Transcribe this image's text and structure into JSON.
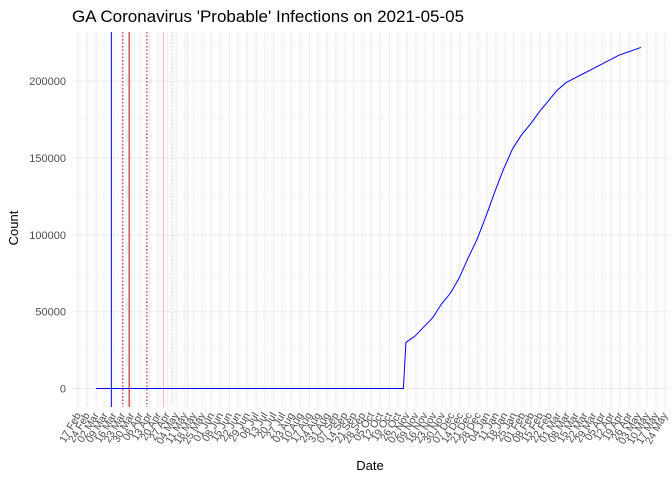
{
  "chart_data": {
    "type": "line",
    "title": "GA Coronavirus 'Probable' Infections on 2021-05-05",
    "xlabel": "Date",
    "ylabel": "Count",
    "ylim": [
      -12000,
      232000
    ],
    "xlim": [
      "2020-02-12",
      "2021-05-28"
    ],
    "grid": true,
    "legend": "none",
    "y_ticks": [
      0,
      50000,
      100000,
      150000,
      200000
    ],
    "x_tick_labels": [
      "17 Feb",
      "24 Feb",
      "02 Mar",
      "09 Mar",
      "16 Mar",
      "23 Mar",
      "30 Mar",
      "06 Apr",
      "13 Apr",
      "20 Apr",
      "27 Apr",
      "04 May",
      "11 May",
      "18 May",
      "25 May",
      "01 Jun",
      "08 Jun",
      "15 Jun",
      "22 Jun",
      "29 Jun",
      "06 Jul",
      "13 Jul",
      "20 Jul",
      "27 Jul",
      "03 Aug",
      "10 Aug",
      "17 Aug",
      "24 Aug",
      "31 Aug",
      "07 Sep",
      "14 Sep",
      "21 Sep",
      "28 Sep",
      "05 Oct",
      "12 Oct",
      "19 Oct",
      "26 Oct",
      "02 Nov",
      "09 Nov",
      "16 Nov",
      "23 Nov",
      "30 Nov",
      "07 Dec",
      "14 Dec",
      "21 Dec",
      "28 Dec",
      "04 Jan",
      "11 Jan",
      "18 Jan",
      "25 Jan",
      "01 Feb",
      "08 Feb",
      "15 Feb",
      "22 Feb",
      "01 Mar",
      "08 Mar",
      "15 Mar",
      "22 Mar",
      "29 Mar",
      "05 Apr",
      "12 Apr",
      "19 Apr",
      "26 Apr",
      "03 May",
      "10 May",
      "17 May",
      "24 May"
    ],
    "x_tick_dates": [
      "2020-02-17",
      "2020-02-24",
      "2020-03-02",
      "2020-03-09",
      "2020-03-16",
      "2020-03-23",
      "2020-03-30",
      "2020-04-06",
      "2020-04-13",
      "2020-04-20",
      "2020-04-27",
      "2020-05-04",
      "2020-05-11",
      "2020-05-18",
      "2020-05-25",
      "2020-06-01",
      "2020-06-08",
      "2020-06-15",
      "2020-06-22",
      "2020-06-29",
      "2020-07-06",
      "2020-07-13",
      "2020-07-20",
      "2020-07-27",
      "2020-08-03",
      "2020-08-10",
      "2020-08-17",
      "2020-08-24",
      "2020-08-31",
      "2020-09-07",
      "2020-09-14",
      "2020-09-21",
      "2020-09-28",
      "2020-10-05",
      "2020-10-12",
      "2020-10-19",
      "2020-10-26",
      "2020-11-02",
      "2020-11-09",
      "2020-11-16",
      "2020-11-23",
      "2020-11-30",
      "2020-12-07",
      "2020-12-14",
      "2020-12-21",
      "2020-12-28",
      "2021-01-04",
      "2021-01-11",
      "2021-01-18",
      "2021-01-25",
      "2021-02-01",
      "2021-02-08",
      "2021-02-15",
      "2021-02-22",
      "2021-03-01",
      "2021-03-08",
      "2021-03-15",
      "2021-03-22",
      "2021-03-29",
      "2021-04-05",
      "2021-04-12",
      "2021-04-19",
      "2021-04-26",
      "2021-05-03",
      "2021-05-10",
      "2021-05-17",
      "2021-05-24"
    ],
    "series": [
      {
        "color": "#0000ff",
        "x": [
          "2020-03-02",
          "2020-10-30",
          "2020-11-01",
          "2020-11-08",
          "2020-11-15",
          "2020-11-22",
          "2020-11-29",
          "2020-12-06",
          "2020-12-13",
          "2020-12-20",
          "2020-12-27",
          "2021-01-03",
          "2021-01-10",
          "2021-01-17",
          "2021-01-24",
          "2021-01-31",
          "2021-02-07",
          "2021-02-14",
          "2021-02-21",
          "2021-02-28",
          "2021-03-07",
          "2021-03-14",
          "2021-03-21",
          "2021-03-28",
          "2021-04-04",
          "2021-04-11",
          "2021-04-18",
          "2021-04-25",
          "2021-05-02",
          "2021-05-05"
        ],
        "y": [
          0,
          0,
          30000,
          34000,
          40000,
          46000,
          55000,
          62000,
          72000,
          85000,
          97000,
          112000,
          128000,
          143000,
          156000,
          165000,
          172000,
          180000,
          187000,
          194000,
          199000,
          202000,
          205000,
          208000,
          211000,
          214000,
          217000,
          219000,
          221000,
          222000
        ]
      }
    ],
    "vlines": [
      {
        "date": "2020-03-14",
        "color": "#0000ff",
        "style": "solid"
      },
      {
        "date": "2020-03-23",
        "color": "#cc0000",
        "style": "dotted"
      },
      {
        "date": "2020-03-28",
        "color": "#cc0000",
        "style": "solid"
      },
      {
        "date": "2020-04-11",
        "color": "#cc0000",
        "style": "dotted"
      },
      {
        "date": "2020-04-24",
        "color": "#ffb0b0",
        "style": "solid"
      },
      {
        "date": "2020-05-01",
        "color": "#ffb0b0",
        "style": "dotted"
      },
      {
        "date": "2020-05-13",
        "color": "#ffd0d0",
        "style": "dotted"
      }
    ]
  }
}
